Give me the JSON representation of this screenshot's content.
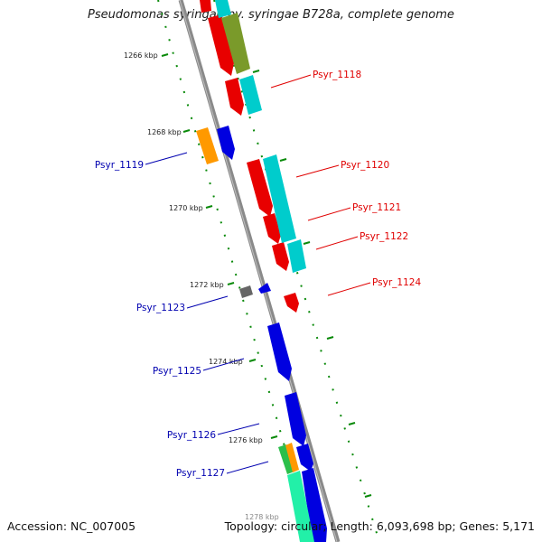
{
  "title": "Pseudomonas syringae pv. syringae B728a, complete genome",
  "footer": {
    "accession": "Accession: NC_007005",
    "stats": "Topology: circular; Length: 6,093,698 bp; Genes: 5,171"
  },
  "colors": {
    "right_label": "#e00000",
    "left_label": "#0000b0",
    "backbone": "#8a8a8a",
    "tick": "#0a8a0a"
  },
  "kbp_ticks": [
    "1266 kbp",
    "1268 kbp",
    "1270 kbp",
    "1272 kbp",
    "1274 kbp",
    "1276 kbp",
    "1278 kbp"
  ],
  "genes_right": [
    "Psyr_1118",
    "Psyr_1120",
    "Psyr_1121",
    "Psyr_1122",
    "Psyr_1124"
  ],
  "genes_left": [
    "Psyr_1119",
    "Psyr_1123",
    "Psyr_1125",
    "Psyr_1126",
    "Psyr_1127"
  ]
}
